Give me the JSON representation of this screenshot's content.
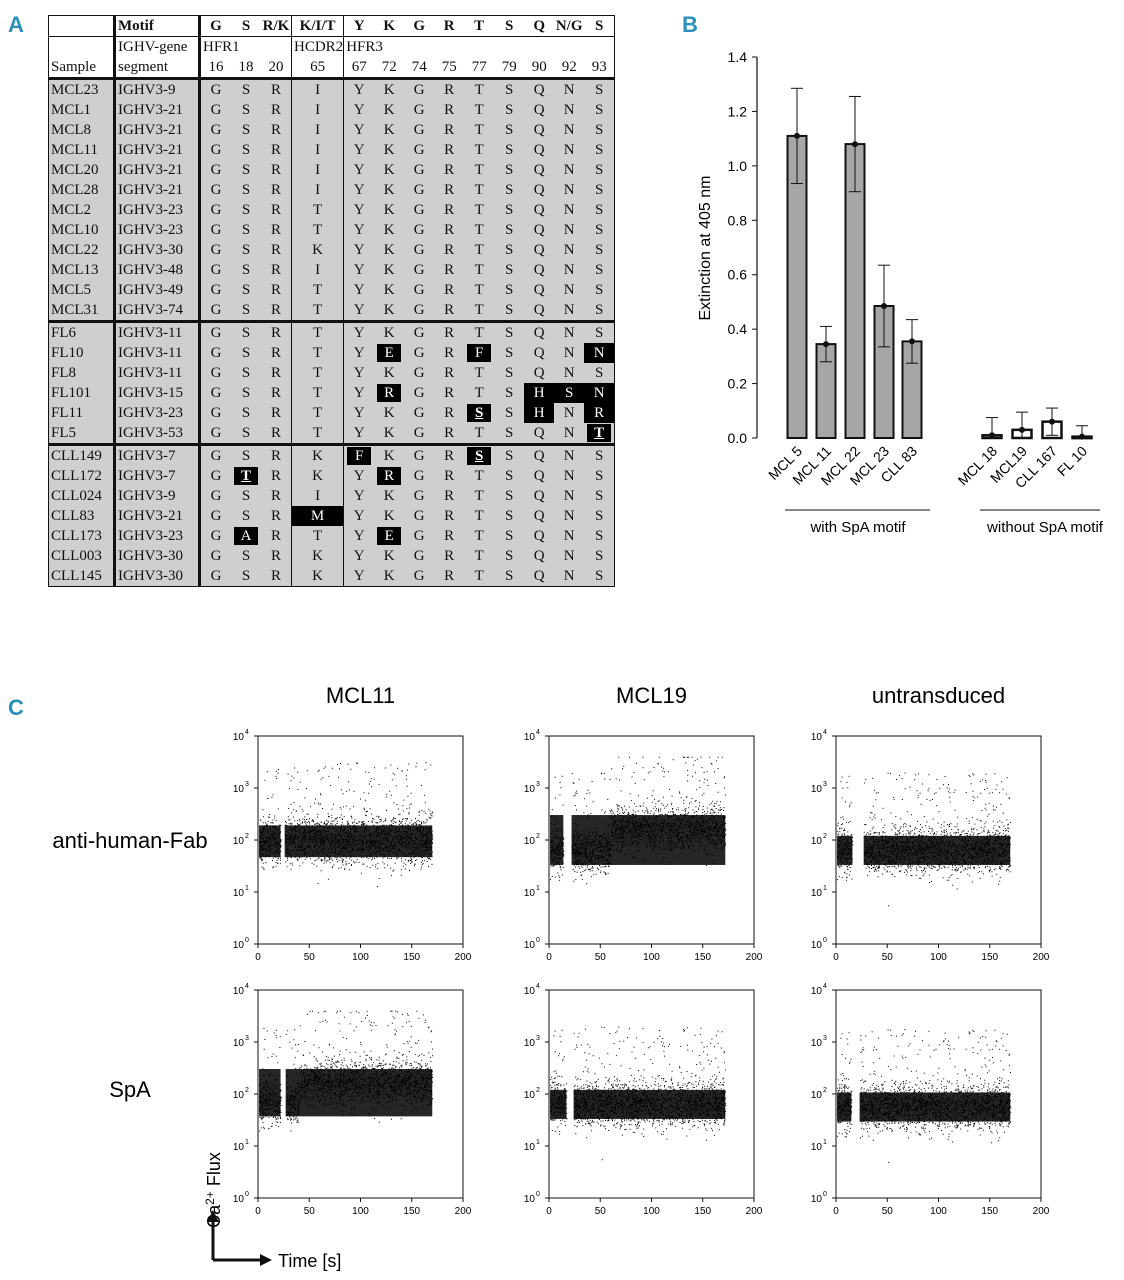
{
  "panels": {
    "a": "A",
    "b": "B",
    "c": "C"
  },
  "table": {
    "header_motif": "Motif",
    "header_gene_line1": "IGHV-gene",
    "header_gene_line2": "segment",
    "header_sample": "Sample",
    "motif": [
      "G",
      "S",
      "R/K",
      "K/I/T",
      "Y",
      "K",
      "G",
      "R",
      "T",
      "S",
      "Q",
      "N/G",
      "S"
    ],
    "regions": [
      "HFR1",
      "HCDR2",
      "HFR3"
    ],
    "positions": [
      "16",
      "18",
      "20",
      "65",
      "67",
      "72",
      "74",
      "75",
      "77",
      "79",
      "90",
      "92",
      "93"
    ],
    "rows": [
      {
        "sample": "MCL23",
        "gene": "IGHV3-9",
        "aa": [
          "G",
          "S",
          "R",
          "I",
          "Y",
          "K",
          "G",
          "R",
          "T",
          "S",
          "Q",
          "N",
          "S"
        ],
        "hl": []
      },
      {
        "sample": "MCL1",
        "gene": "IGHV3-21",
        "aa": [
          "G",
          "S",
          "R",
          "I",
          "Y",
          "K",
          "G",
          "R",
          "T",
          "S",
          "Q",
          "N",
          "S"
        ],
        "hl": []
      },
      {
        "sample": "MCL8",
        "gene": "IGHV3-21",
        "aa": [
          "G",
          "S",
          "R",
          "I",
          "Y",
          "K",
          "G",
          "R",
          "T",
          "S",
          "Q",
          "N",
          "S"
        ],
        "hl": []
      },
      {
        "sample": "MCL11",
        "gene": "IGHV3-21",
        "aa": [
          "G",
          "S",
          "R",
          "I",
          "Y",
          "K",
          "G",
          "R",
          "T",
          "S",
          "Q",
          "N",
          "S"
        ],
        "hl": []
      },
      {
        "sample": "MCL20",
        "gene": "IGHV3-21",
        "aa": [
          "G",
          "S",
          "R",
          "I",
          "Y",
          "K",
          "G",
          "R",
          "T",
          "S",
          "Q",
          "N",
          "S"
        ],
        "hl": []
      },
      {
        "sample": "MCL28",
        "gene": "IGHV3-21",
        "aa": [
          "G",
          "S",
          "R",
          "I",
          "Y",
          "K",
          "G",
          "R",
          "T",
          "S",
          "Q",
          "N",
          "S"
        ],
        "hl": []
      },
      {
        "sample": "MCL2",
        "gene": "IGHV3-23",
        "aa": [
          "G",
          "S",
          "R",
          "T",
          "Y",
          "K",
          "G",
          "R",
          "T",
          "S",
          "Q",
          "N",
          "S"
        ],
        "hl": []
      },
      {
        "sample": "MCL10",
        "gene": "IGHV3-23",
        "aa": [
          "G",
          "S",
          "R",
          "T",
          "Y",
          "K",
          "G",
          "R",
          "T",
          "S",
          "Q",
          "N",
          "S"
        ],
        "hl": []
      },
      {
        "sample": "MCL22",
        "gene": "IGHV3-30",
        "aa": [
          "G",
          "S",
          "R",
          "K",
          "Y",
          "K",
          "G",
          "R",
          "T",
          "S",
          "Q",
          "N",
          "S"
        ],
        "hl": []
      },
      {
        "sample": "MCL13",
        "gene": "IGHV3-48",
        "aa": [
          "G",
          "S",
          "R",
          "I",
          "Y",
          "K",
          "G",
          "R",
          "T",
          "S",
          "Q",
          "N",
          "S"
        ],
        "hl": []
      },
      {
        "sample": "MCL5",
        "gene": "IGHV3-49",
        "aa": [
          "G",
          "S",
          "R",
          "T",
          "Y",
          "K",
          "G",
          "R",
          "T",
          "S",
          "Q",
          "N",
          "S"
        ],
        "hl": []
      },
      {
        "sample": "MCL31",
        "gene": "IGHV3-74",
        "aa": [
          "G",
          "S",
          "R",
          "T",
          "Y",
          "K",
          "G",
          "R",
          "T",
          "S",
          "Q",
          "N",
          "S"
        ],
        "hl": []
      },
      {
        "sample": "FL6",
        "gene": "IGHV3-11",
        "aa": [
          "G",
          "S",
          "R",
          "T",
          "Y",
          "K",
          "G",
          "R",
          "T",
          "S",
          "Q",
          "N",
          "S"
        ],
        "hl": []
      },
      {
        "sample": "FL10",
        "gene": "IGHV3-11",
        "aa": [
          "G",
          "S",
          "R",
          "T",
          "Y",
          "E",
          "G",
          "R",
          "F",
          "S",
          "Q",
          "N",
          "N"
        ],
        "hl": [
          5,
          8,
          12
        ]
      },
      {
        "sample": "FL8",
        "gene": "IGHV3-11",
        "aa": [
          "G",
          "S",
          "R",
          "T",
          "Y",
          "K",
          "G",
          "R",
          "T",
          "S",
          "Q",
          "N",
          "S"
        ],
        "hl": []
      },
      {
        "sample": "FL101",
        "gene": "IGHV3-15",
        "aa": [
          "G",
          "S",
          "R",
          "T",
          "Y",
          "R",
          "G",
          "R",
          "T",
          "S",
          "H",
          "S",
          "N"
        ],
        "hl": [
          5,
          10,
          11,
          12
        ]
      },
      {
        "sample": "FL11",
        "gene": "IGHV3-23",
        "aa": [
          "G",
          "S",
          "R",
          "T",
          "Y",
          "K",
          "G",
          "R",
          "S",
          "S",
          "H",
          "N",
          "R"
        ],
        "hl": [
          8,
          10,
          12
        ],
        "ul": [
          8
        ]
      },
      {
        "sample": "FL5",
        "gene": "IGHV3-53",
        "aa": [
          "G",
          "S",
          "R",
          "T",
          "Y",
          "K",
          "G",
          "R",
          "T",
          "S",
          "Q",
          "N",
          "T"
        ],
        "hl": [
          12
        ],
        "ul": [
          12
        ]
      },
      {
        "sample": "CLL149",
        "gene": "IGHV3-7",
        "aa": [
          "G",
          "S",
          "R",
          "K",
          "F",
          "K",
          "G",
          "R",
          "S",
          "S",
          "Q",
          "N",
          "S"
        ],
        "hl": [
          4,
          8
        ],
        "ul": [
          8
        ]
      },
      {
        "sample": "CLL172",
        "gene": "IGHV3-7",
        "aa": [
          "G",
          "T",
          "R",
          "K",
          "Y",
          "R",
          "G",
          "R",
          "T",
          "S",
          "Q",
          "N",
          "S"
        ],
        "hl": [
          1,
          5
        ],
        "ul": [
          1
        ]
      },
      {
        "sample": "CLL024",
        "gene": "IGHV3-9",
        "aa": [
          "G",
          "S",
          "R",
          "I",
          "Y",
          "K",
          "G",
          "R",
          "T",
          "S",
          "Q",
          "N",
          "S"
        ],
        "hl": []
      },
      {
        "sample": "CLL83",
        "gene": "IGHV3-21",
        "aa": [
          "G",
          "S",
          "R",
          "M",
          "Y",
          "K",
          "G",
          "R",
          "T",
          "S",
          "Q",
          "N",
          "S"
        ],
        "hl": [
          3
        ]
      },
      {
        "sample": "CLL173",
        "gene": "IGHV3-23",
        "aa": [
          "G",
          "A",
          "R",
          "T",
          "Y",
          "E",
          "G",
          "R",
          "T",
          "S",
          "Q",
          "N",
          "S"
        ],
        "hl": [
          1,
          5
        ]
      },
      {
        "sample": "CLL003",
        "gene": "IGHV3-30",
        "aa": [
          "G",
          "S",
          "R",
          "K",
          "Y",
          "K",
          "G",
          "R",
          "T",
          "S",
          "Q",
          "N",
          "S"
        ],
        "hl": []
      },
      {
        "sample": "CLL145",
        "gene": "IGHV3-30",
        "aa": [
          "G",
          "S",
          "R",
          "K",
          "Y",
          "K",
          "G",
          "R",
          "T",
          "S",
          "Q",
          "N",
          "S"
        ],
        "hl": []
      }
    ]
  },
  "chart_data": [
    {
      "type": "bar",
      "panel": "B",
      "ylabel": "Extinction at 405 nm",
      "ylim": [
        0,
        1.4
      ],
      "yticks": [
        "0.0",
        "0.2",
        "0.4",
        "0.6",
        "0.8",
        "1.0",
        "1.2",
        "1.4"
      ],
      "categories": [
        "MCL 5",
        "MCL 11",
        "MCL 22",
        "MCL 23",
        "CLL 83",
        "MCL 18",
        "MCL19",
        "CLL 167",
        "FL 10"
      ],
      "values": [
        1.11,
        0.345,
        1.08,
        0.485,
        0.355,
        0.01,
        0.03,
        0.06,
        0.005
      ],
      "error": [
        0.175,
        0.065,
        0.175,
        0.15,
        0.08,
        0.065,
        0.065,
        0.05,
        0.04
      ],
      "groups": [
        {
          "label": "with SpA motif",
          "members": [
            "MCL 5",
            "MCL 11",
            "MCL 22",
            "MCL 23",
            "CLL 83"
          ]
        },
        {
          "label": "without SpA motif",
          "members": [
            "MCL 18",
            "MCL19",
            "CLL 167",
            "FL 10"
          ]
        }
      ],
      "colors": {
        "with": "#a6a6a6",
        "without": "#ffffff"
      }
    },
    {
      "type": "scatter",
      "panel": "C",
      "columns": [
        "MCL11",
        "MCL19",
        "untransduced"
      ],
      "rows": [
        "anti-human-Fab",
        "SpA"
      ],
      "xticks": [
        "0",
        "50",
        "100",
        "150",
        "200"
      ],
      "xlim": [
        0,
        200
      ],
      "yticks": [
        "10",
        "10",
        "10",
        "10",
        "10"
      ],
      "ytick_exponents": [
        "0",
        "1",
        "2",
        "3",
        "4"
      ],
      "ylim_log10": [
        0,
        4
      ],
      "ylabel": "Ca",
      "ylabel_sup": "2+",
      "ylabel_rest": " Flux",
      "xlabel": "Time [s]",
      "plots": [
        {
          "col": "MCL11",
          "row": "anti-human-Fab",
          "gap": [
            22,
            26
          ],
          "baseline_log10": 1.95,
          "response_log10": 2.0,
          "response_start": 26,
          "end": 170
        },
        {
          "col": "MCL19",
          "row": "anti-human-Fab",
          "gap": [
            14,
            22
          ],
          "baseline_log10": 1.8,
          "response_log10": 2.2,
          "response_start": 60,
          "end": 172
        },
        {
          "col": "untransduced",
          "row": "anti-human-Fab",
          "gap": [
            16,
            27
          ],
          "baseline_log10": 1.8,
          "response_log10": 1.8,
          "response_start": 27,
          "end": 170
        },
        {
          "col": "MCL11",
          "row": "SpA",
          "gap": [
            22,
            27
          ],
          "baseline_log10": 1.85,
          "response_log10": 2.2,
          "response_start": 40,
          "end": 170
        },
        {
          "col": "MCL19",
          "row": "SpA",
          "gap": [
            17,
            24
          ],
          "baseline_log10": 1.8,
          "response_log10": 1.8,
          "response_start": 24,
          "end": 172
        },
        {
          "col": "untransduced",
          "row": "SpA",
          "gap": [
            15,
            23
          ],
          "baseline_log10": 1.75,
          "response_log10": 1.75,
          "response_start": 23,
          "end": 170
        }
      ]
    }
  ]
}
